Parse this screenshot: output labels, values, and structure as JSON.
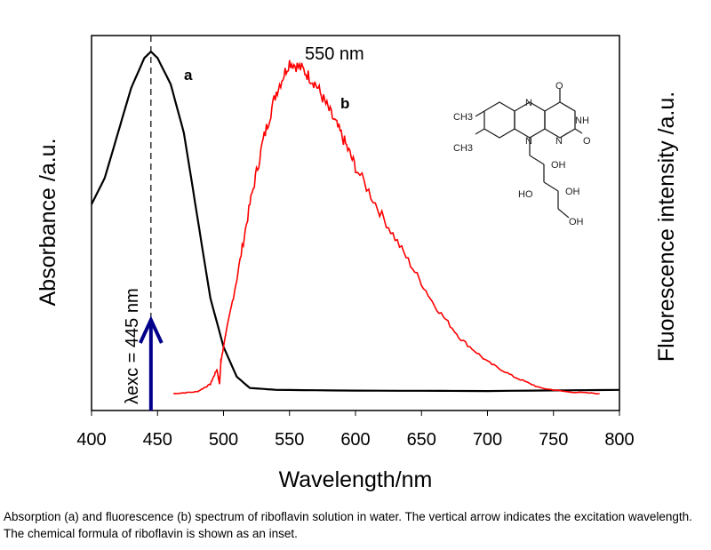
{
  "chart_data": {
    "type": "line",
    "xlabel": "Wavelength/nm",
    "ylabel_left": "Absorbance  /a.u.",
    "ylabel_right": "Fluorescence intensity  /a.u.",
    "xlim": [
      400,
      800
    ],
    "ylim": [
      0,
      1
    ],
    "xticks": [
      400,
      450,
      500,
      550,
      600,
      650,
      700,
      750,
      800
    ],
    "grid": false,
    "series": [
      {
        "name": "a",
        "label": "a",
        "color": "#000000",
        "x": [
          400,
          410,
          420,
          430,
          440,
          445,
          450,
          460,
          470,
          480,
          490,
          500,
          510,
          520,
          540,
          600,
          700,
          800
        ],
        "y": [
          0.55,
          0.62,
          0.74,
          0.86,
          0.94,
          0.957,
          0.94,
          0.87,
          0.74,
          0.52,
          0.3,
          0.17,
          0.09,
          0.06,
          0.055,
          0.053,
          0.052,
          0.055
        ]
      },
      {
        "name": "b",
        "label": "b",
        "color": "#ff0000",
        "x": [
          462,
          480,
          490,
          495,
          497,
          498,
          500,
          510,
          520,
          530,
          540,
          550,
          560,
          570,
          580,
          590,
          600,
          620,
          640,
          660,
          680,
          700,
          720,
          740,
          760,
          785
        ],
        "y": [
          0.045,
          0.05,
          0.07,
          0.11,
          0.07,
          0.13,
          0.17,
          0.35,
          0.55,
          0.72,
          0.85,
          0.93,
          0.91,
          0.87,
          0.8,
          0.73,
          0.65,
          0.52,
          0.4,
          0.28,
          0.19,
          0.13,
          0.09,
          0.06,
          0.05,
          0.045
        ]
      }
    ],
    "annotations": {
      "peak_label": "550 nm",
      "excitation_label": "λexc = 445 nm",
      "excitation_wavelength": 445,
      "arrow_color": "#00008b"
    }
  },
  "inset": {
    "ch3_top": "CH3",
    "ch3_bottom": "CH3",
    "n1": "N",
    "n2": "N",
    "n3": "N",
    "nh": "NH",
    "o1": "O",
    "o2": "O",
    "oh1": "OH",
    "oh2": "OH",
    "oh3": "OH",
    "ho": "HO"
  },
  "caption": "Absorption (a) and fluorescence (b) spectrum of riboflavin solution in water. The vertical arrow indicates the excitation wavelength. The chemical formula of riboflavin is shown as an inset."
}
